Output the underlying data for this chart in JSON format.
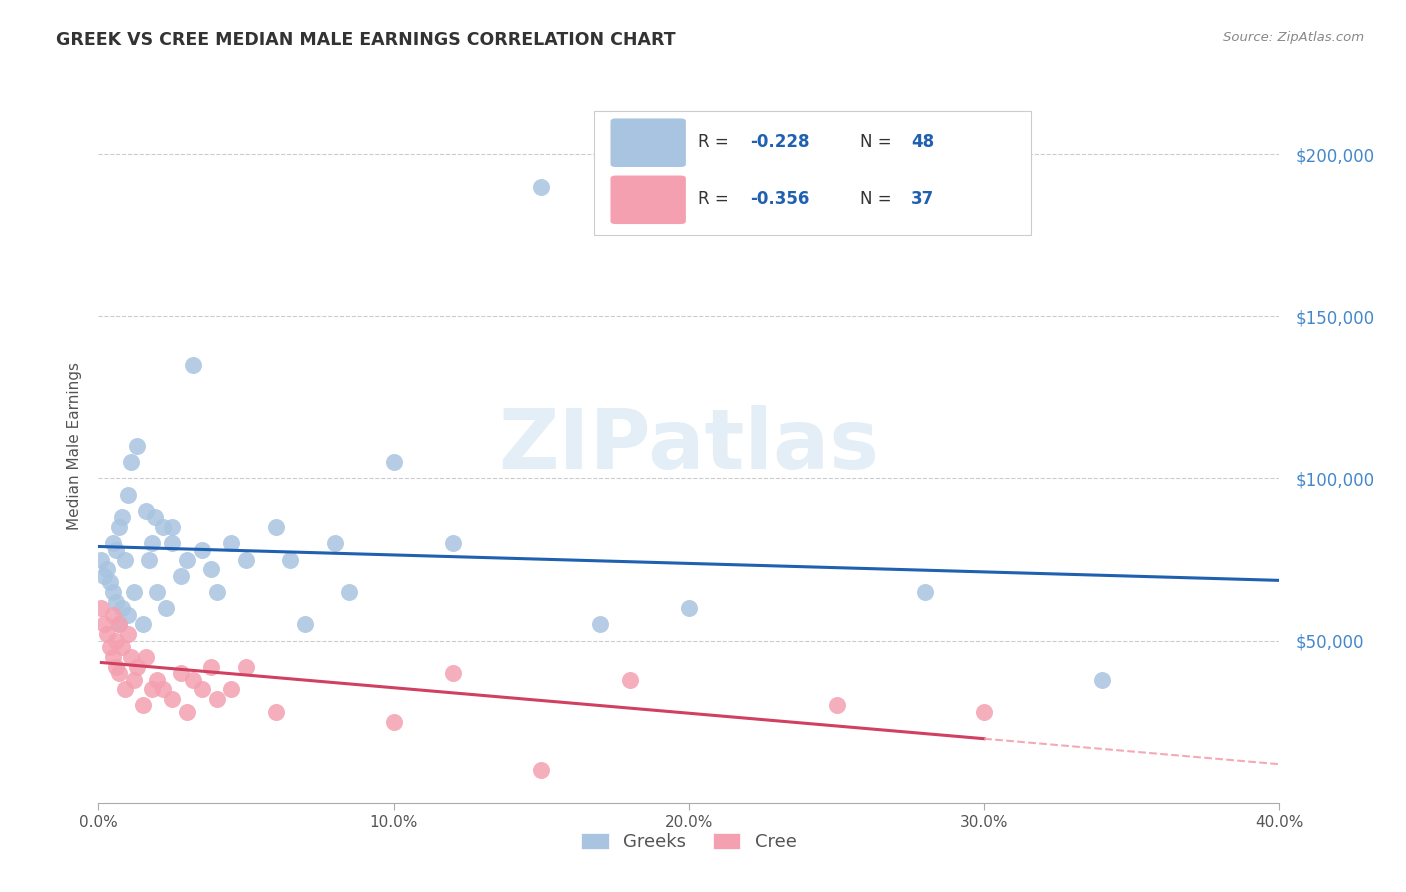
{
  "title": "GREEK VS CREE MEDIAN MALE EARNINGS CORRELATION CHART",
  "source": "Source: ZipAtlas.com",
  "ylabel": "Median Male Earnings",
  "xlim": [
    0.0,
    0.4
  ],
  "ylim": [
    0,
    220000
  ],
  "yticks": [
    50000,
    100000,
    150000,
    200000
  ],
  "ytick_labels": [
    "$50,000",
    "$100,000",
    "$150,000",
    "$200,000"
  ],
  "greek_fill_color": "#a8c4e0",
  "greek_line_color": "#2060b0",
  "cree_fill_color": "#f4a0b0",
  "cree_line_color": "#d04060",
  "cree_dash_color": "#f4a0b0",
  "watermark_text": "ZIPatlas",
  "watermark_color": "#c8dff0",
  "background_color": "#ffffff",
  "grid_color": "#cccccc",
  "title_color": "#333333",
  "axis_color": "#555555",
  "right_tick_color": "#4488cc",
  "legend_r_color": "#2060b0",
  "legend_n_color": "#2060b0",
  "greeks_x": [
    0.001,
    0.002,
    0.003,
    0.004,
    0.005,
    0.005,
    0.006,
    0.006,
    0.007,
    0.007,
    0.008,
    0.008,
    0.009,
    0.01,
    0.01,
    0.011,
    0.012,
    0.013,
    0.015,
    0.016,
    0.017,
    0.018,
    0.019,
    0.02,
    0.022,
    0.023,
    0.025,
    0.025,
    0.028,
    0.03,
    0.032,
    0.035,
    0.038,
    0.04,
    0.045,
    0.05,
    0.06,
    0.065,
    0.07,
    0.08,
    0.085,
    0.1,
    0.12,
    0.15,
    0.17,
    0.2,
    0.28,
    0.34
  ],
  "greeks_y": [
    75000,
    70000,
    72000,
    68000,
    80000,
    65000,
    78000,
    62000,
    85000,
    55000,
    88000,
    60000,
    75000,
    95000,
    58000,
    105000,
    65000,
    110000,
    55000,
    90000,
    75000,
    80000,
    88000,
    65000,
    85000,
    60000,
    85000,
    80000,
    70000,
    75000,
    135000,
    78000,
    72000,
    65000,
    80000,
    75000,
    85000,
    75000,
    55000,
    80000,
    65000,
    105000,
    80000,
    190000,
    55000,
    60000,
    65000,
    38000
  ],
  "cree_x": [
    0.001,
    0.002,
    0.003,
    0.004,
    0.005,
    0.005,
    0.006,
    0.006,
    0.007,
    0.007,
    0.008,
    0.009,
    0.01,
    0.011,
    0.012,
    0.013,
    0.015,
    0.016,
    0.018,
    0.02,
    0.022,
    0.025,
    0.028,
    0.03,
    0.032,
    0.035,
    0.038,
    0.04,
    0.045,
    0.05,
    0.06,
    0.1,
    0.12,
    0.15,
    0.18,
    0.25,
    0.3
  ],
  "cree_y": [
    60000,
    55000,
    52000,
    48000,
    58000,
    45000,
    50000,
    42000,
    55000,
    40000,
    48000,
    35000,
    52000,
    45000,
    38000,
    42000,
    30000,
    45000,
    35000,
    38000,
    35000,
    32000,
    40000,
    28000,
    38000,
    35000,
    42000,
    32000,
    35000,
    42000,
    28000,
    25000,
    40000,
    10000,
    38000,
    30000,
    28000
  ]
}
